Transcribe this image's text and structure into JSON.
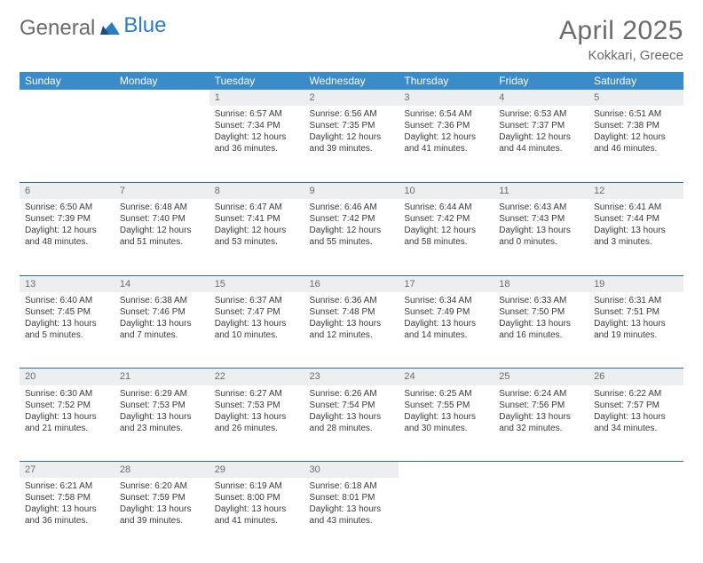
{
  "logo": {
    "word1": "General",
    "word2": "Blue"
  },
  "title": "April 2025",
  "location": "Kokkari, Greece",
  "day_headers": [
    "Sunday",
    "Monday",
    "Tuesday",
    "Wednesday",
    "Thursday",
    "Friday",
    "Saturday"
  ],
  "colors": {
    "header_bg": "#3a8bca",
    "header_text": "#ffffff",
    "daynum_bg": "#eceeef",
    "rule": "#2e6fa6",
    "title_gray": "#6b6b6b",
    "logo_blue": "#2e7cc2"
  },
  "weeks": [
    [
      null,
      null,
      {
        "n": "1",
        "sr": "Sunrise: 6:57 AM",
        "ss": "Sunset: 7:34 PM",
        "d1": "Daylight: 12 hours",
        "d2": "and 36 minutes."
      },
      {
        "n": "2",
        "sr": "Sunrise: 6:56 AM",
        "ss": "Sunset: 7:35 PM",
        "d1": "Daylight: 12 hours",
        "d2": "and 39 minutes."
      },
      {
        "n": "3",
        "sr": "Sunrise: 6:54 AM",
        "ss": "Sunset: 7:36 PM",
        "d1": "Daylight: 12 hours",
        "d2": "and 41 minutes."
      },
      {
        "n": "4",
        "sr": "Sunrise: 6:53 AM",
        "ss": "Sunset: 7:37 PM",
        "d1": "Daylight: 12 hours",
        "d2": "and 44 minutes."
      },
      {
        "n": "5",
        "sr": "Sunrise: 6:51 AM",
        "ss": "Sunset: 7:38 PM",
        "d1": "Daylight: 12 hours",
        "d2": "and 46 minutes."
      }
    ],
    [
      {
        "n": "6",
        "sr": "Sunrise: 6:50 AM",
        "ss": "Sunset: 7:39 PM",
        "d1": "Daylight: 12 hours",
        "d2": "and 48 minutes."
      },
      {
        "n": "7",
        "sr": "Sunrise: 6:48 AM",
        "ss": "Sunset: 7:40 PM",
        "d1": "Daylight: 12 hours",
        "d2": "and 51 minutes."
      },
      {
        "n": "8",
        "sr": "Sunrise: 6:47 AM",
        "ss": "Sunset: 7:41 PM",
        "d1": "Daylight: 12 hours",
        "d2": "and 53 minutes."
      },
      {
        "n": "9",
        "sr": "Sunrise: 6:46 AM",
        "ss": "Sunset: 7:42 PM",
        "d1": "Daylight: 12 hours",
        "d2": "and 55 minutes."
      },
      {
        "n": "10",
        "sr": "Sunrise: 6:44 AM",
        "ss": "Sunset: 7:42 PM",
        "d1": "Daylight: 12 hours",
        "d2": "and 58 minutes."
      },
      {
        "n": "11",
        "sr": "Sunrise: 6:43 AM",
        "ss": "Sunset: 7:43 PM",
        "d1": "Daylight: 13 hours",
        "d2": "and 0 minutes."
      },
      {
        "n": "12",
        "sr": "Sunrise: 6:41 AM",
        "ss": "Sunset: 7:44 PM",
        "d1": "Daylight: 13 hours",
        "d2": "and 3 minutes."
      }
    ],
    [
      {
        "n": "13",
        "sr": "Sunrise: 6:40 AM",
        "ss": "Sunset: 7:45 PM",
        "d1": "Daylight: 13 hours",
        "d2": "and 5 minutes."
      },
      {
        "n": "14",
        "sr": "Sunrise: 6:38 AM",
        "ss": "Sunset: 7:46 PM",
        "d1": "Daylight: 13 hours",
        "d2": "and 7 minutes."
      },
      {
        "n": "15",
        "sr": "Sunrise: 6:37 AM",
        "ss": "Sunset: 7:47 PM",
        "d1": "Daylight: 13 hours",
        "d2": "and 10 minutes."
      },
      {
        "n": "16",
        "sr": "Sunrise: 6:36 AM",
        "ss": "Sunset: 7:48 PM",
        "d1": "Daylight: 13 hours",
        "d2": "and 12 minutes."
      },
      {
        "n": "17",
        "sr": "Sunrise: 6:34 AM",
        "ss": "Sunset: 7:49 PM",
        "d1": "Daylight: 13 hours",
        "d2": "and 14 minutes."
      },
      {
        "n": "18",
        "sr": "Sunrise: 6:33 AM",
        "ss": "Sunset: 7:50 PM",
        "d1": "Daylight: 13 hours",
        "d2": "and 16 minutes."
      },
      {
        "n": "19",
        "sr": "Sunrise: 6:31 AM",
        "ss": "Sunset: 7:51 PM",
        "d1": "Daylight: 13 hours",
        "d2": "and 19 minutes."
      }
    ],
    [
      {
        "n": "20",
        "sr": "Sunrise: 6:30 AM",
        "ss": "Sunset: 7:52 PM",
        "d1": "Daylight: 13 hours",
        "d2": "and 21 minutes."
      },
      {
        "n": "21",
        "sr": "Sunrise: 6:29 AM",
        "ss": "Sunset: 7:53 PM",
        "d1": "Daylight: 13 hours",
        "d2": "and 23 minutes."
      },
      {
        "n": "22",
        "sr": "Sunrise: 6:27 AM",
        "ss": "Sunset: 7:53 PM",
        "d1": "Daylight: 13 hours",
        "d2": "and 26 minutes."
      },
      {
        "n": "23",
        "sr": "Sunrise: 6:26 AM",
        "ss": "Sunset: 7:54 PM",
        "d1": "Daylight: 13 hours",
        "d2": "and 28 minutes."
      },
      {
        "n": "24",
        "sr": "Sunrise: 6:25 AM",
        "ss": "Sunset: 7:55 PM",
        "d1": "Daylight: 13 hours",
        "d2": "and 30 minutes."
      },
      {
        "n": "25",
        "sr": "Sunrise: 6:24 AM",
        "ss": "Sunset: 7:56 PM",
        "d1": "Daylight: 13 hours",
        "d2": "and 32 minutes."
      },
      {
        "n": "26",
        "sr": "Sunrise: 6:22 AM",
        "ss": "Sunset: 7:57 PM",
        "d1": "Daylight: 13 hours",
        "d2": "and 34 minutes."
      }
    ],
    [
      {
        "n": "27",
        "sr": "Sunrise: 6:21 AM",
        "ss": "Sunset: 7:58 PM",
        "d1": "Daylight: 13 hours",
        "d2": "and 36 minutes."
      },
      {
        "n": "28",
        "sr": "Sunrise: 6:20 AM",
        "ss": "Sunset: 7:59 PM",
        "d1": "Daylight: 13 hours",
        "d2": "and 39 minutes."
      },
      {
        "n": "29",
        "sr": "Sunrise: 6:19 AM",
        "ss": "Sunset: 8:00 PM",
        "d1": "Daylight: 13 hours",
        "d2": "and 41 minutes."
      },
      {
        "n": "30",
        "sr": "Sunrise: 6:18 AM",
        "ss": "Sunset: 8:01 PM",
        "d1": "Daylight: 13 hours",
        "d2": "and 43 minutes."
      },
      null,
      null,
      null
    ]
  ]
}
